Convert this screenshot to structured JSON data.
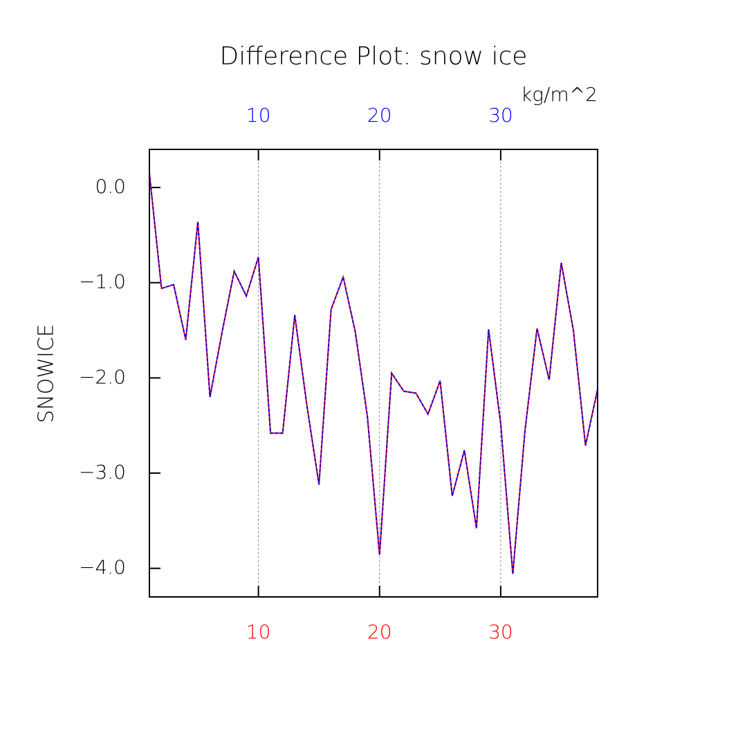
{
  "chart_data": {
    "type": "line",
    "title": "Difference Plot: snow ice",
    "units": "kg/m^2",
    "y_label": "SNOWICE",
    "x": [
      1,
      2,
      3,
      4,
      5,
      6,
      7,
      8,
      9,
      10,
      11,
      12,
      13,
      14,
      15,
      16,
      17,
      18,
      19,
      20,
      21,
      22,
      23,
      24,
      25,
      26,
      27,
      28,
      29,
      30,
      31,
      32,
      33,
      34,
      35,
      36,
      37,
      38
    ],
    "series": [
      {
        "color": "#ff0000",
        "dash": false,
        "values": [
          0.15,
          -1.06,
          -1.02,
          -1.6,
          -0.36,
          -2.2,
          -1.52,
          -0.88,
          -1.14,
          -0.73,
          -2.58,
          -2.58,
          -1.34,
          -2.29,
          -3.12,
          -1.28,
          -0.94,
          -1.52,
          -2.41,
          -3.86,
          -1.95,
          -2.14,
          -2.16,
          -2.38,
          -2.03,
          -3.24,
          -2.76,
          -3.58,
          -1.49,
          -2.48,
          -4.06,
          -2.56,
          -1.48,
          -2.02,
          -0.79,
          -1.5,
          -2.71,
          -2.12
        ]
      },
      {
        "color": "#0000ff",
        "dash": true,
        "values": [
          0.15,
          -1.06,
          -1.02,
          -1.6,
          -0.36,
          -2.2,
          -1.52,
          -0.88,
          -1.14,
          -0.73,
          -2.58,
          -2.58,
          -1.34,
          -2.29,
          -3.12,
          -1.28,
          -0.94,
          -1.52,
          -2.41,
          -3.86,
          -1.95,
          -2.14,
          -2.16,
          -2.38,
          -2.03,
          -3.24,
          -2.76,
          -3.58,
          -1.49,
          -2.48,
          -4.06,
          -2.56,
          -1.48,
          -2.02,
          -0.79,
          -1.5,
          -2.71,
          -2.12
        ]
      }
    ],
    "xlim": [
      1,
      38
    ],
    "xticks": [
      10,
      20,
      30
    ],
    "xtick_color": "#ff0000",
    "x2lim": [
      1,
      38
    ],
    "x2ticks": [
      10,
      20,
      30
    ],
    "x2tick_color": "#0000ff",
    "ylim": [
      -4.3,
      0.4
    ],
    "yticks": [
      {
        "value": 0,
        "label": "0.0"
      },
      {
        "value": -1,
        "label": "−1.0"
      },
      {
        "value": -2,
        "label": "−2.0"
      },
      {
        "value": -3,
        "label": "−3.0"
      },
      {
        "value": -4,
        "label": "−4.0"
      }
    ],
    "grid": true
  }
}
